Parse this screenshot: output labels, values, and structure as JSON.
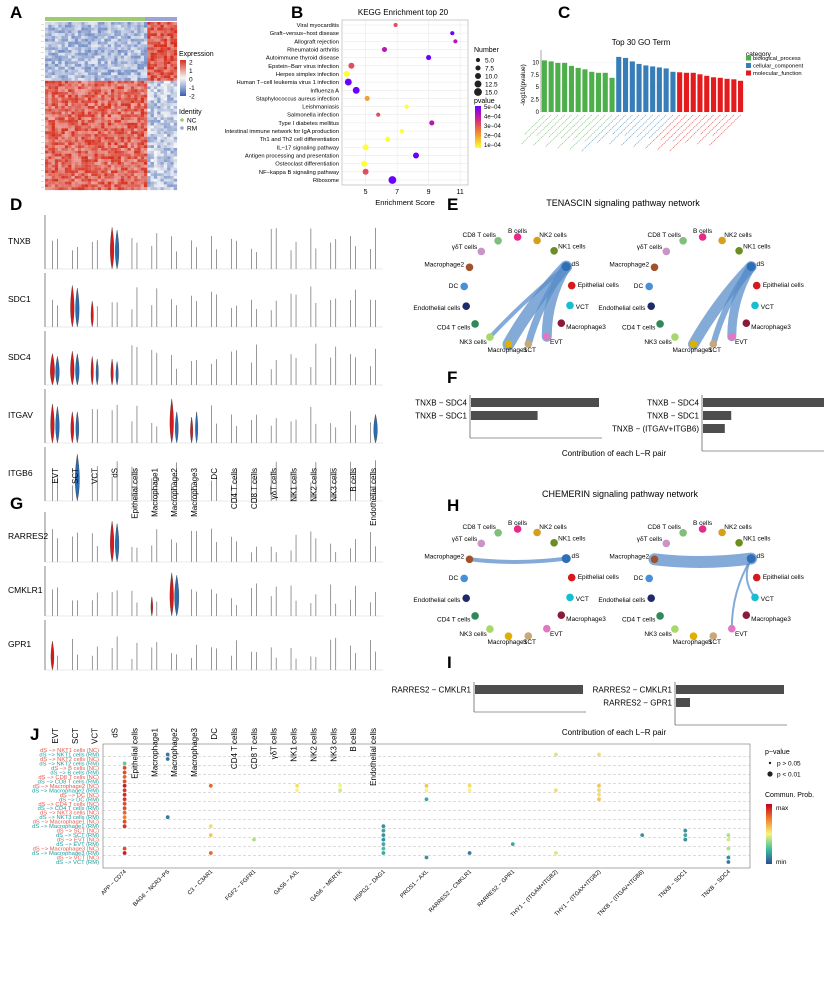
{
  "panel_labels": [
    "A",
    "B",
    "C",
    "D",
    "E",
    "F",
    "G",
    "H",
    "I",
    "J"
  ],
  "panelA": {
    "legend_expression_title": "Expression",
    "legend_expression_ticks": [
      "2",
      "1",
      "0",
      "-1",
      "-2"
    ],
    "legend_identity_title": "Identity",
    "legend_identity_items": [
      "NC",
      "RM"
    ],
    "colors": {
      "high": "#d7301f",
      "mid": "#f7f7f7",
      "low": "#3a5fb0",
      "nc": "#9ecb6b",
      "rm": "#9aa5d6"
    }
  },
  "chart_data": [
    {
      "type": "scatter",
      "title": "KEGG Enrichment top 20",
      "xlabel": "Enrichment Score",
      "xlim": [
        3.5,
        11.5
      ],
      "xticks": [
        5,
        7,
        9,
        11
      ],
      "categories": [
        "Viral myocarditis",
        "Graft−versus−host disease",
        "Allograft rejection",
        "Rheumatoid arthritis",
        "Autoimmune thyroid disease",
        "Epstein−Barr virus infection",
        "Herpes simplex infection",
        "Human T−cell leukemia virus 1 infection",
        "Influenza A",
        "Staphylococcus aureus infection",
        "Leishmaniasis",
        "Salmonella infection",
        "Type I diabetes mellitus",
        "Intestinal immune network for IgA production",
        "Th1 and Th2 cell differentiation",
        "IL−17 signaling pathway",
        "Antigen processing and presentation",
        "Osteoclast differentiation",
        "NF−kappa B signaling pathway",
        "Ribosome"
      ],
      "values": [
        6.9,
        10.5,
        10.7,
        6.2,
        9.0,
        4.1,
        3.8,
        3.9,
        4.4,
        5.1,
        7.6,
        5.8,
        9.2,
        7.3,
        6.4,
        5.0,
        8.2,
        4.9,
        5.0,
        6.7
      ],
      "sizes": [
        5,
        5,
        5,
        7.5,
        7.5,
        10,
        10,
        12.5,
        12.5,
        7.5,
        5,
        5,
        7.5,
        5,
        7.5,
        10,
        10,
        10,
        10,
        15
      ],
      "pvalues": [
        0.0003,
        0.0005,
        0.0004,
        0.0004,
        0.0005,
        0.0003,
        0.0001,
        0.0005,
        0.0005,
        0.0002,
        0.0001,
        0.0003,
        0.0004,
        0.0001,
        0.0001,
        0.0001,
        0.0005,
        0.0001,
        0.0003,
        0.0005
      ],
      "legend_size_title": "Number",
      "legend_size_items": [
        "5.0",
        "7.5",
        "10.0",
        "12.5",
        "15.0"
      ],
      "legend_size_values": [
        5,
        7.5,
        10,
        12.5,
        15
      ],
      "legend_color_title": "pvalue",
      "legend_color_items": [
        "5e−04",
        "4e−04",
        "3e−04",
        "2e−04",
        "1e−04"
      ]
    },
    {
      "type": "bar",
      "title": "Top 30 GO Term",
      "ylabel": "-log10(pvalue)",
      "ylim": [
        0,
        12.5
      ],
      "yticks": [
        0,
        2.5,
        5,
        7.5,
        10
      ],
      "values": [
        10.4,
        10.2,
        9.9,
        9.9,
        9.3,
        8.9,
        8.6,
        8.1,
        7.9,
        7.9,
        6.9,
        11.1,
        10.9,
        10.2,
        9.7,
        9.4,
        9.2,
        9.0,
        8.8,
        8.1,
        8.0,
        7.9,
        7.9,
        7.6,
        7.3,
        7.0,
        6.9,
        6.7,
        6.6,
        6.3
      ],
      "groups": [
        "biological_process",
        "biological_process",
        "biological_process",
        "biological_process",
        "biological_process",
        "biological_process",
        "biological_process",
        "biological_process",
        "biological_process",
        "biological_process",
        "biological_process",
        "cellular_component",
        "cellular_component",
        "cellular_component",
        "cellular_component",
        "cellular_component",
        "cellular_component",
        "cellular_component",
        "cellular_component",
        "cellular_component",
        "molecular_function",
        "molecular_function",
        "molecular_function",
        "molecular_function",
        "molecular_function",
        "molecular_function",
        "molecular_function",
        "molecular_function",
        "molecular_function",
        "molecular_function"
      ],
      "legend_title": "category",
      "legend_items": [
        "biological_process",
        "cellular_component",
        "molecular_function"
      ],
      "colors": {
        "biological_process": "#4daf4a",
        "cellular_component": "#377eb8",
        "molecular_function": "#e41a1c"
      }
    },
    {
      "type": "bar",
      "title": "Contribution of each L−R pair",
      "panel": "F",
      "left": {
        "categories": [
          "TNXB − SDC4",
          "TNXB − SDC1"
        ],
        "values": [
          1.0,
          0.52
        ]
      },
      "right": {
        "categories": [
          "TNXB − SDC4",
          "TNXB − SDC1",
          "TNXB − (ITGAV+ITGB6)"
        ],
        "values": [
          1.0,
          0.22,
          0.17
        ]
      }
    },
    {
      "type": "bar",
      "title": "Contribution of each L−R pair",
      "panel": "I",
      "left": {
        "categories": [
          "RARRES2 − CMKLR1"
        ],
        "values": [
          1.0
        ]
      },
      "right": {
        "categories": [
          "RARRES2 − CMKLR1",
          "RARRES2 − GPR1"
        ],
        "values": [
          1.0,
          0.13
        ]
      }
    },
    {
      "type": "scatter",
      "panel": "J",
      "rows": [
        "dS −> NKT1 cells (NC)",
        "dS −> NKT1 cells (RM)",
        "dS −> NKT2 cells (NC)",
        "dS −> NKT2 cells (RM)",
        "dS −> B cells (NC)",
        "dS −> B cells (RM)",
        "dS −> CD8 T cells (NC)",
        "dS −> CD8 T cells (RM)",
        "dS −> Macrophage2 (NC)",
        "dS −> Macrophage2 (RM)",
        "dS −> DC (NC)",
        "dS −> DC (RM)",
        "dS −> CD4 T cells (NC)",
        "dS −> CD4 T cells (RM)",
        "dS −> NKT3 cells (NC)",
        "dS −> NKT3 cells (RM)",
        "dS −> Macrophage1 (NC)",
        "dS −> Macrophage1 (RM)",
        "dS −> SCT (NC)",
        "dS −> SCT (RM)",
        "dS −> EVT (NC)",
        "dS −> EVT (RM)",
        "dS −> Macrophage3 (NC)",
        "dS −> Macrophage3 (RM)",
        "dS −> VCT (NC)",
        "dS −> VCT (RM)"
      ],
      "columns": [
        "APP − CD74",
        "BAG6 − NCR3−PS",
        "C3 − C3AR1",
        "FGF2 − FGFR1",
        "GAS6 − AXL",
        "GAS6 − MERTK",
        "HSPG2 − DAG1",
        "PROS1 − AXL",
        "RARRES2 − CMKLR1",
        "RARRES2 − GPR1",
        "THY1 − (ITGAM+ITGB2)",
        "THY1 − (ITGAX+ITGB2)",
        "TNXB − (ITGAV+ITGB6)",
        "TNXB − SDC1",
        "TNXB − SDC4"
      ],
      "points": [
        [
          0,
          3,
          0.3
        ],
        [
          0,
          4,
          0.85
        ],
        [
          0,
          5,
          0.85
        ],
        [
          0,
          6,
          0.8
        ],
        [
          0,
          7,
          0.85
        ],
        [
          0,
          8,
          0.95
        ],
        [
          0,
          9,
          0.9
        ],
        [
          0,
          10,
          0.92
        ],
        [
          0,
          11,
          0.9
        ],
        [
          0,
          12,
          0.85
        ],
        [
          0,
          13,
          0.85
        ],
        [
          0,
          14,
          0.8
        ],
        [
          0,
          15,
          0.75
        ],
        [
          0,
          16,
          0.85
        ],
        [
          0,
          17,
          0.9
        ],
        [
          0,
          22,
          0.85
        ],
        [
          0,
          23,
          0.95
        ],
        [
          1,
          1,
          0.1
        ],
        [
          1,
          2,
          0.1
        ],
        [
          1,
          15,
          0.1
        ],
        [
          2,
          8,
          0.8
        ],
        [
          2,
          17,
          0.55
        ],
        [
          2,
          19,
          0.6
        ],
        [
          2,
          23,
          0.8
        ],
        [
          3,
          20,
          0.4
        ],
        [
          4,
          8,
          0.55
        ],
        [
          4,
          9,
          0.5
        ],
        [
          5,
          8,
          0.5
        ],
        [
          5,
          9,
          0.45
        ],
        [
          6,
          17,
          0.15
        ],
        [
          6,
          18,
          0.2
        ],
        [
          6,
          19,
          0.15
        ],
        [
          6,
          20,
          0.15
        ],
        [
          6,
          21,
          0.2
        ],
        [
          6,
          22,
          0.25
        ],
        [
          6,
          23,
          0.2
        ],
        [
          7,
          8,
          0.6
        ],
        [
          7,
          9,
          0.5
        ],
        [
          7,
          11,
          0.2
        ],
        [
          7,
          24,
          0.15
        ],
        [
          8,
          8,
          0.55
        ],
        [
          8,
          9,
          0.5
        ],
        [
          8,
          23,
          0.1
        ],
        [
          9,
          21,
          0.2
        ],
        [
          10,
          1,
          0.45
        ],
        [
          10,
          9,
          0.55
        ],
        [
          10,
          23,
          0.45
        ],
        [
          11,
          1,
          0.55
        ],
        [
          11,
          8,
          0.6
        ],
        [
          11,
          9,
          0.55
        ],
        [
          11,
          10,
          0.55
        ],
        [
          11,
          11,
          0.6
        ],
        [
          12,
          19,
          0.15
        ],
        [
          13,
          18,
          0.15
        ],
        [
          13,
          19,
          0.2
        ],
        [
          13,
          20,
          0.15
        ],
        [
          14,
          19,
          0.4
        ],
        [
          14,
          20,
          0.45
        ],
        [
          14,
          22,
          0.4
        ],
        [
          14,
          24,
          0.15
        ],
        [
          14,
          25,
          0.1
        ]
      ],
      "legend_p_title": "p−value",
      "legend_p_items": [
        "p > 0.05",
        "p < 0.01"
      ],
      "legend_prob_title": "Commun. Prob.",
      "legend_prob_max": "max",
      "legend_prob_min": "min"
    }
  ],
  "panelD": {
    "genes": [
      "TNXB",
      "SDC1",
      "SDC4",
      "ITGAV",
      "ITGB6"
    ],
    "groups": [
      "EVT",
      "SCT",
      "VCT",
      "dS",
      "Epithelial cells",
      "Macrophage1",
      "Macrophage2",
      "Macrophage3",
      "DC",
      "CD4 T cells",
      "CD8 T cells",
      "γδT cells",
      "NK1 cells",
      "NK2 cells",
      "NK3 cells",
      "B cells",
      "Endothelial cells"
    ],
    "colors": {
      "nc": "#d7191c",
      "rm": "#2b6cb0"
    }
  },
  "panelG": {
    "genes": [
      "RARRES2",
      "CMKLR1",
      "GPR1"
    ],
    "groups": [
      "EVT",
      "SCT",
      "VCT",
      "dS",
      "Epithelial cells",
      "Macrophage1",
      "Macrophage2",
      "Macrophage3",
      "DC",
      "CD4 T cells",
      "CD8 T cells",
      "γδT cells",
      "NK1 cells",
      "NK2 cells",
      "NK3 cells",
      "B cells",
      "Endothelial cells"
    ]
  },
  "panelE": {
    "title": "TENASCIN signaling pathway network",
    "nodes": [
      "CD8 T cells",
      "B cells",
      "NK2 cells",
      "NK1 cells",
      "dS",
      "Epithelial cells",
      "VCT",
      "Macrophage3",
      "EVT",
      "SCT",
      "Macrophage1",
      "NK3 cells",
      "CD4 T cells",
      "Endothelial cells",
      "DC",
      "Macrophage2",
      "γδT cells"
    ]
  },
  "panelH": {
    "title": "CHEMERIN signaling pathway network"
  },
  "node_colors": [
    "#7fbf7b",
    "#e7298a",
    "#d6a01d",
    "#6b8e23",
    "#2f6fb5",
    "#d7191c",
    "#17becf",
    "#8b1a3a",
    "#e377c2",
    "#c8a878",
    "#e0b000",
    "#a6d96a",
    "#2e8b57",
    "#1f2a6b",
    "#4a90d9",
    "#a0522d",
    "#c994c7"
  ]
}
